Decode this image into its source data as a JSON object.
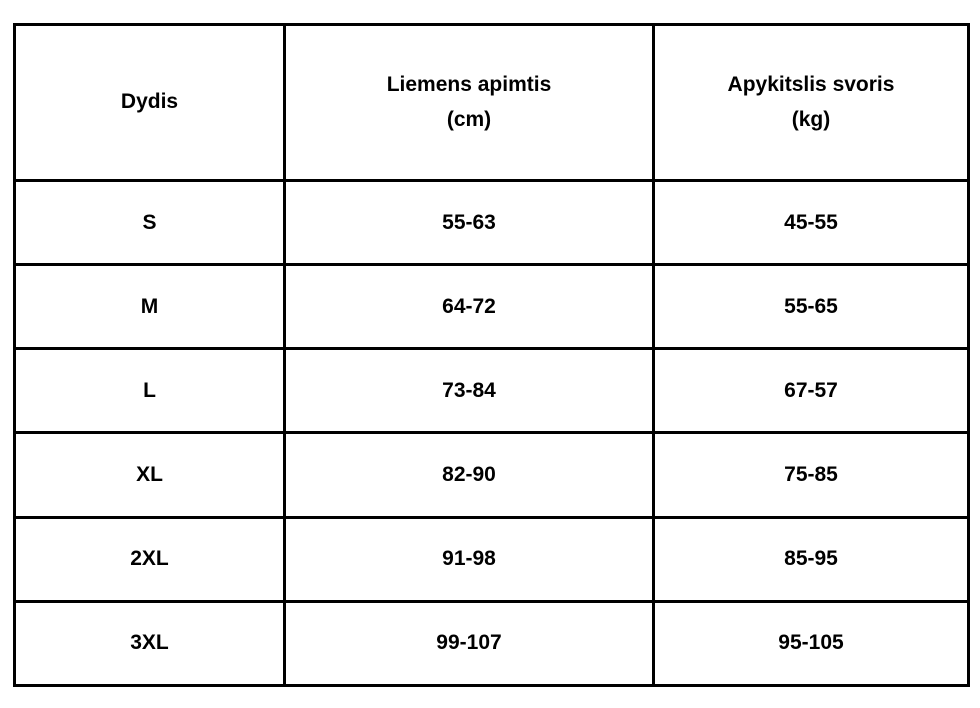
{
  "table": {
    "headers": {
      "size": "Dydis",
      "waist": "Liemens apimtis\n(cm)",
      "weight": "Apykitslis svoris\n(kg)"
    },
    "rows": [
      {
        "size": "S",
        "waist": "55-63",
        "weight": "45-55"
      },
      {
        "size": "M",
        "waist": "64-72",
        "weight": "55-65"
      },
      {
        "size": "L",
        "waist": "73-84",
        "weight": "67-57"
      },
      {
        "size": "XL",
        "waist": "82-90",
        "weight": "75-85"
      },
      {
        "size": "2XL",
        "waist": "91-98",
        "weight": "85-95"
      },
      {
        "size": "3XL",
        "waist": "99-107",
        "weight": "95-105"
      }
    ],
    "colors": {
      "border": "#000000",
      "text": "#000000",
      "background": "#ffffff"
    }
  }
}
